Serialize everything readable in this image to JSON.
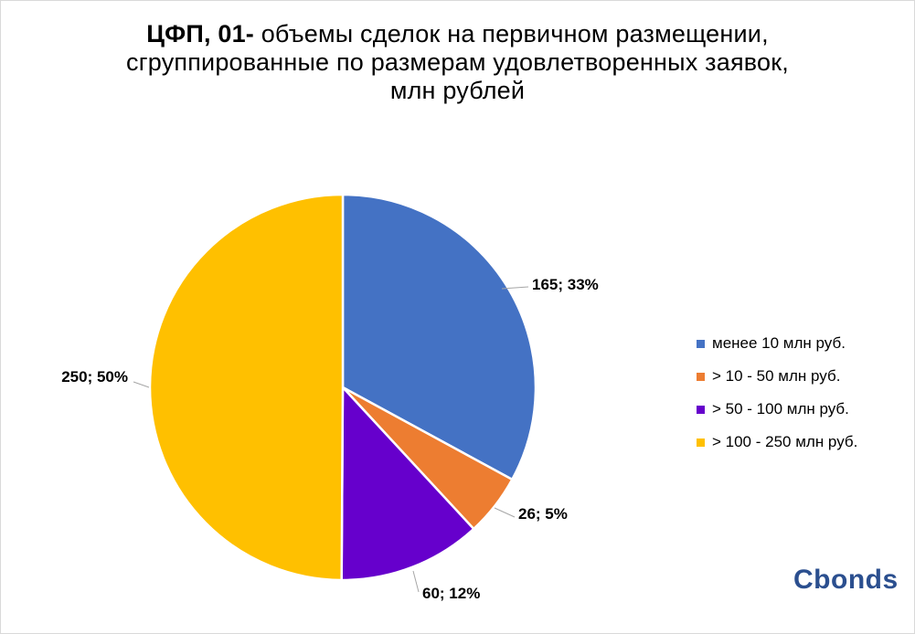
{
  "title": {
    "bold_part": "ЦФП, 01-",
    "line1_rest": " объемы сделок на первичном размещении,",
    "line2": "сгруппированные по размерам удовлетворенных заявок,",
    "line3": "млн рублей"
  },
  "logo": {
    "text": "Cbonds"
  },
  "chart_data": {
    "type": "pie",
    "title": "ЦФП, 01- объемы сделок на первичном размещении, сгруппированные по размерам удовлетворенных заявок, млн рублей",
    "legend_position": "right",
    "start_angle_deg": 0,
    "direction": "clockwise",
    "series": [
      {
        "name": "",
        "slices": [
          {
            "label": "менее 10 млн руб.",
            "value": 165,
            "percent": 33,
            "data_label": "165; 33%",
            "color": "#4472c4"
          },
          {
            "label": "> 10 - 50 млн руб.",
            "value": 26,
            "percent": 5,
            "data_label": "26; 5%",
            "color": "#ed7d31"
          },
          {
            "label": "> 50 - 100 млн руб.",
            "value": 60,
            "percent": 12,
            "data_label": "60; 12%",
            "color": "#6600cc"
          },
          {
            "label": "> 100 - 250 млн руб.",
            "value": 250,
            "percent": 50,
            "data_label": "250; 50%",
            "color": "#ffc000"
          }
        ]
      }
    ]
  }
}
